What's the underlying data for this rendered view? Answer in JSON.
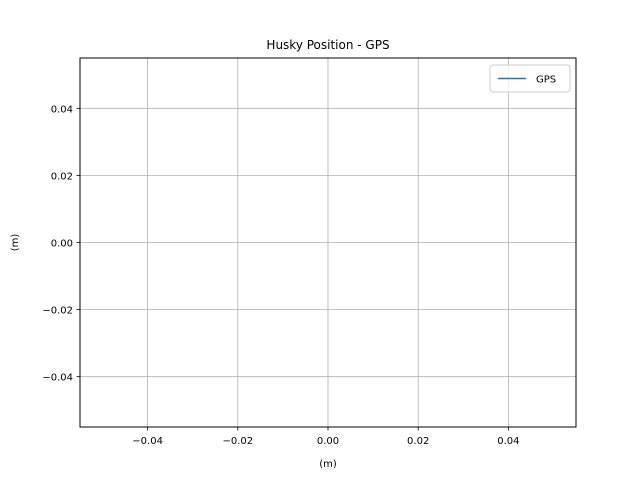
{
  "chart_data": {
    "type": "line",
    "title": "Husky Position - GPS",
    "xlabel": "(m)",
    "ylabel": "(m)",
    "xlim": [
      -0.055,
      0.055
    ],
    "ylim": [
      -0.055,
      0.055
    ],
    "xticks": [
      -0.04,
      -0.02,
      0.0,
      0.02,
      0.04
    ],
    "yticks": [
      -0.04,
      -0.02,
      0.0,
      0.02,
      0.04
    ],
    "xtick_labels": [
      "−0.04",
      "−0.02",
      "0.00",
      "0.02",
      "0.04"
    ],
    "ytick_labels": [
      "−0.04",
      "−0.02",
      "0.00",
      "0.02",
      "0.04"
    ],
    "grid": true,
    "legend_position": "top-right",
    "series": [
      {
        "name": "GPS",
        "color": "#1f77b4",
        "x": [],
        "y": []
      }
    ]
  }
}
